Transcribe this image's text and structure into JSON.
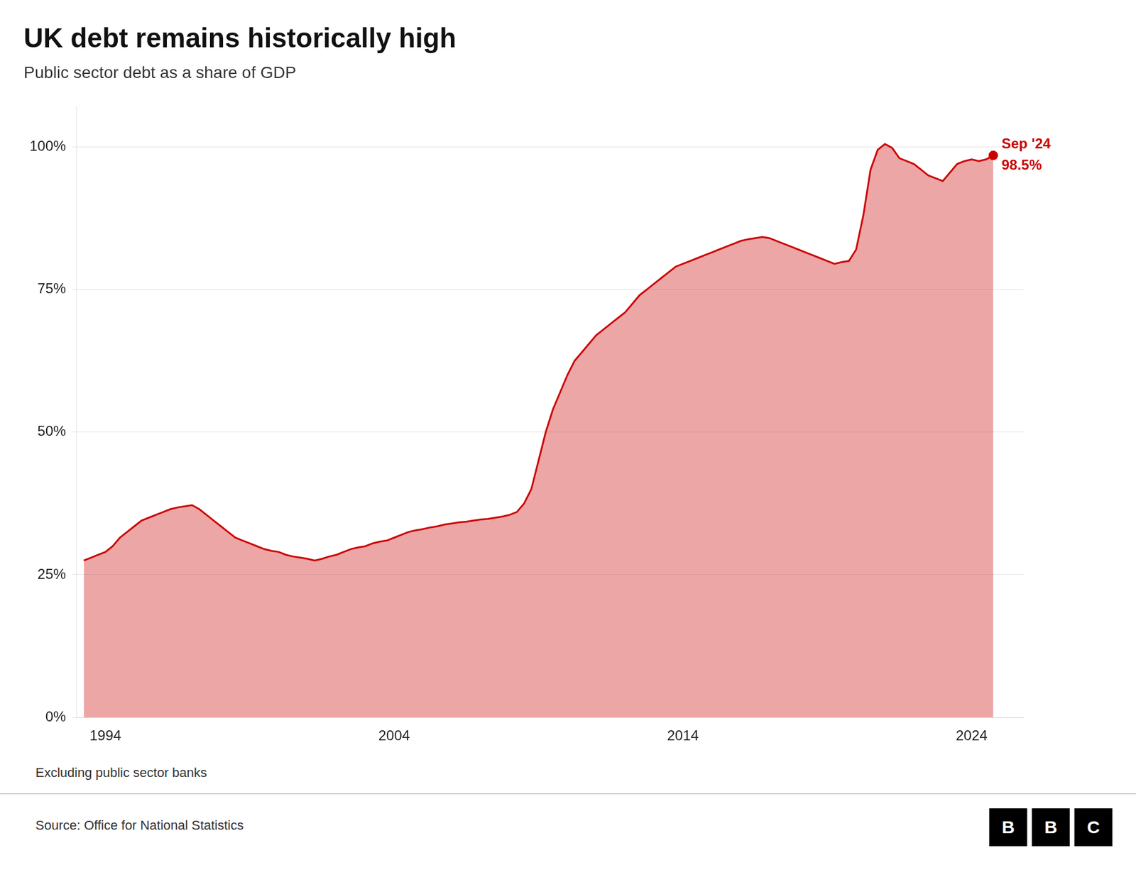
{
  "chart_data": {
    "type": "area",
    "title": "UK debt remains historically high",
    "subtitle": "Public sector debt as a share of GDP",
    "footnote": "Excluding public sector banks",
    "source": "Source: Office for National Statistics",
    "logo": "BBC",
    "color": "#cc0000",
    "x": [
      1993.25,
      1993.5,
      1993.75,
      1994.0,
      1994.25,
      1994.5,
      1994.75,
      1995.0,
      1995.25,
      1995.5,
      1995.75,
      1996.0,
      1996.25,
      1996.5,
      1996.75,
      1997.0,
      1997.25,
      1997.5,
      1997.75,
      1998.0,
      1998.25,
      1998.5,
      1998.75,
      1999.0,
      1999.25,
      1999.5,
      1999.75,
      2000.0,
      2000.25,
      2000.5,
      2000.75,
      2001.0,
      2001.25,
      2001.5,
      2001.75,
      2002.0,
      2002.25,
      2002.5,
      2002.75,
      2003.0,
      2003.25,
      2003.5,
      2003.75,
      2004.0,
      2004.25,
      2004.5,
      2004.75,
      2005.0,
      2005.25,
      2005.5,
      2005.75,
      2006.0,
      2006.25,
      2006.5,
      2006.75,
      2007.0,
      2007.25,
      2007.5,
      2007.75,
      2008.0,
      2008.25,
      2008.5,
      2008.75,
      2009.0,
      2009.25,
      2009.5,
      2009.75,
      2010.0,
      2010.25,
      2010.5,
      2010.75,
      2011.0,
      2011.25,
      2011.5,
      2011.75,
      2012.0,
      2012.25,
      2012.5,
      2012.75,
      2013.0,
      2013.25,
      2013.5,
      2013.75,
      2014.0,
      2014.25,
      2014.5,
      2014.75,
      2015.0,
      2015.25,
      2015.5,
      2015.75,
      2016.0,
      2016.25,
      2016.5,
      2016.75,
      2017.0,
      2017.25,
      2017.5,
      2017.75,
      2018.0,
      2018.25,
      2018.5,
      2018.75,
      2019.0,
      2019.25,
      2019.5,
      2019.75,
      2020.0,
      2020.25,
      2020.5,
      2020.75,
      2021.0,
      2021.25,
      2021.5,
      2021.75,
      2022.0,
      2022.25,
      2022.5,
      2022.75,
      2023.0,
      2023.25,
      2023.5,
      2023.75,
      2024.0,
      2024.25,
      2024.5,
      2024.75
    ],
    "values": [
      27.5,
      28.0,
      28.5,
      29.0,
      30.0,
      31.5,
      32.5,
      33.5,
      34.5,
      35.0,
      35.5,
      36.0,
      36.5,
      36.8,
      37.0,
      37.2,
      36.5,
      35.5,
      34.5,
      33.5,
      32.5,
      31.5,
      31.0,
      30.5,
      30.0,
      29.5,
      29.2,
      29.0,
      28.5,
      28.2,
      28.0,
      27.8,
      27.5,
      27.8,
      28.2,
      28.5,
      29.0,
      29.5,
      29.8,
      30.0,
      30.5,
      30.8,
      31.0,
      31.5,
      32.0,
      32.5,
      32.8,
      33.0,
      33.3,
      33.5,
      33.8,
      34.0,
      34.2,
      34.3,
      34.5,
      34.7,
      34.8,
      35.0,
      35.2,
      35.5,
      36.0,
      37.5,
      40.0,
      45.0,
      50.0,
      54.0,
      57.0,
      60.0,
      62.5,
      64.0,
      65.5,
      67.0,
      68.0,
      69.0,
      70.0,
      71.0,
      72.5,
      74.0,
      75.0,
      76.0,
      77.0,
      78.0,
      79.0,
      79.5,
      80.0,
      80.5,
      81.0,
      81.5,
      82.0,
      82.5,
      83.0,
      83.5,
      83.8,
      84.0,
      84.2,
      84.0,
      83.5,
      83.0,
      82.5,
      82.0,
      81.5,
      81.0,
      80.5,
      80.0,
      79.5,
      79.8,
      80.0,
      82.0,
      88.0,
      96.0,
      99.5,
      100.5,
      99.8,
      98.0,
      97.5,
      97.0,
      96.0,
      95.0,
      94.5,
      94.0,
      95.5,
      97.0,
      97.5,
      97.8,
      97.5,
      97.8,
      98.5
    ],
    "xlim": [
      1993.0,
      2025.8
    ],
    "ylim": [
      0,
      107
    ],
    "xticks": [
      1994,
      2004,
      2014,
      2024
    ],
    "yticks": [
      {
        "value": 0,
        "label": "0%"
      },
      {
        "value": 25,
        "label": "25%"
      },
      {
        "value": 50,
        "label": "50%"
      },
      {
        "value": 75,
        "label": "75%"
      },
      {
        "value": 100,
        "label": "100%"
      }
    ],
    "grid": "y",
    "annotation": {
      "x": 2024.75,
      "y": 98.5,
      "labels": [
        "Sep '24",
        "98.5%"
      ]
    }
  }
}
